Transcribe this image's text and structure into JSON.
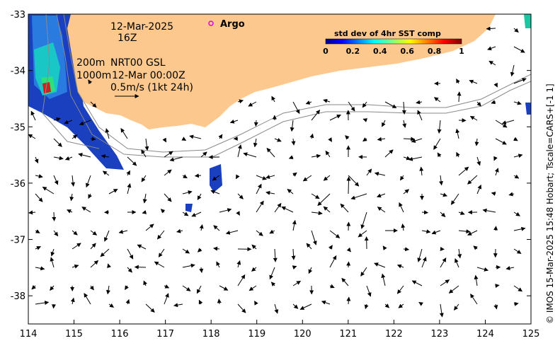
{
  "map": {
    "date": "12-Mar-2025",
    "hour": "16Z",
    "platform_label": "Argo",
    "platform_color": "#e000e0",
    "isobath_label": "200m",
    "isobath_label_2": "1000m",
    "source_label": "NRT00 GSL",
    "analysis_time": "12-Mar 00:00Z",
    "scale_arrow_label": "0.5m/s (1kt 24h)",
    "credit": "© IMOS 15-Mar-2025 15:48 Hobart; Tscale=CARS+[-1 1]",
    "land_color": "#fcc88e",
    "x_ticks": [
      "114",
      "115",
      "116",
      "117",
      "118",
      "119",
      "120",
      "121",
      "122",
      "123",
      "124",
      "125"
    ],
    "y_ticks": [
      "-33",
      "-34",
      "-35",
      "-36",
      "-37",
      "-38"
    ],
    "x_range": [
      114,
      125
    ],
    "y_range": [
      -38.5,
      -33
    ]
  },
  "colorbar": {
    "title": "std dev of 4hr SST comp",
    "ticks": [
      "0",
      "0.2",
      "0.4",
      "0.6",
      "0.8",
      "1"
    ],
    "range": [
      0,
      1
    ]
  }
}
